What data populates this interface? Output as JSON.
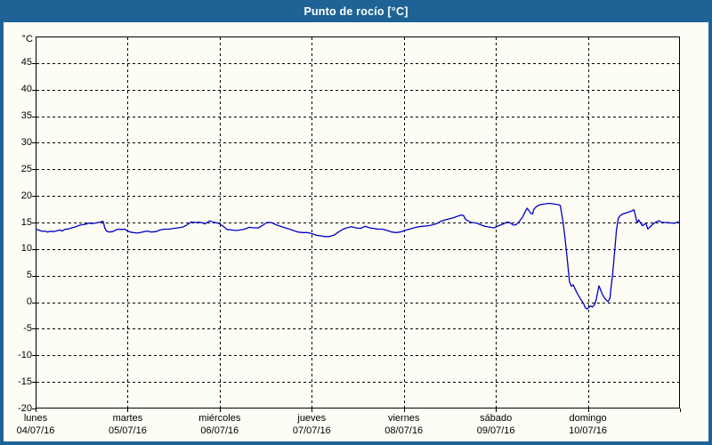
{
  "header": {
    "title": "Punto de rocío [°C]"
  },
  "colors": {
    "frame": "#1F6396",
    "background": "#FDFDF5",
    "line": "#0000C8",
    "grid": "#000000",
    "text": "#000000"
  },
  "chart_data": {
    "type": "line",
    "title": "Punto de rocío [°C]",
    "xlabel": "",
    "ylabel": "°C",
    "ylim": [
      -20,
      50
    ],
    "xlim_days": [
      0,
      7
    ],
    "grid": true,
    "legend": "none",
    "y_ticks": [
      45,
      40,
      35,
      30,
      25,
      20,
      15,
      10,
      5,
      0,
      -5,
      -10,
      -15,
      -20
    ],
    "x_days": [
      {
        "name": "lunes",
        "date": "04/07/16"
      },
      {
        "name": "martes",
        "date": "05/07/16"
      },
      {
        "name": "miércoles",
        "date": "06/07/16"
      },
      {
        "name": "jueves",
        "date": "07/07/16"
      },
      {
        "name": "viernes",
        "date": "08/07/16"
      },
      {
        "name": "sábado",
        "date": "09/07/16"
      },
      {
        "name": "domingo",
        "date": "10/07/16"
      }
    ],
    "series": [
      {
        "name": "Punto de rocío",
        "color": "#0000C8",
        "points": [
          [
            0,
            13.75
          ],
          [
            0.03,
            13.6
          ],
          [
            0.07,
            13.35
          ],
          [
            0.1,
            13.4
          ],
          [
            0.13,
            13.2
          ],
          [
            0.16,
            13.35
          ],
          [
            0.19,
            13.3
          ],
          [
            0.22,
            13.4
          ],
          [
            0.26,
            13.6
          ],
          [
            0.29,
            13.4
          ],
          [
            0.32,
            13.75
          ],
          [
            0.36,
            13.8
          ],
          [
            0.39,
            14
          ],
          [
            0.42,
            14.1
          ],
          [
            0.45,
            14.3
          ],
          [
            0.48,
            14.5
          ],
          [
            0.51,
            14.6
          ],
          [
            0.55,
            14.7
          ],
          [
            0.58,
            14.9
          ],
          [
            0.61,
            14.8
          ],
          [
            0.65,
            14.9
          ],
          [
            0.68,
            15
          ],
          [
            0.71,
            15.1
          ],
          [
            0.73,
            15.25
          ],
          [
            0.74,
            14.9
          ],
          [
            0.75,
            14
          ],
          [
            0.77,
            13.4
          ],
          [
            0.8,
            13.2
          ],
          [
            0.84,
            13.3
          ],
          [
            0.87,
            13.6
          ],
          [
            0.9,
            13.75
          ],
          [
            0.94,
            13.7
          ],
          [
            0.97,
            13.75
          ],
          [
            1,
            13.4
          ],
          [
            1.03,
            13.2
          ],
          [
            1.06,
            13.1
          ],
          [
            1.11,
            13
          ],
          [
            1.16,
            13.2
          ],
          [
            1.21,
            13.4
          ],
          [
            1.26,
            13.2
          ],
          [
            1.31,
            13.3
          ],
          [
            1.35,
            13.6
          ],
          [
            1.4,
            13.75
          ],
          [
            1.45,
            13.75
          ],
          [
            1.5,
            13.9
          ],
          [
            1.55,
            14
          ],
          [
            1.6,
            14.15
          ],
          [
            1.64,
            14.5
          ],
          [
            1.69,
            15.1
          ],
          [
            1.74,
            15
          ],
          [
            1.79,
            15.05
          ],
          [
            1.84,
            14.75
          ],
          [
            1.89,
            15.3
          ],
          [
            1.93,
            15.05
          ],
          [
            1.98,
            14.9
          ],
          [
            2.03,
            14.4
          ],
          [
            2.08,
            13.7
          ],
          [
            2.13,
            13.6
          ],
          [
            2.18,
            13.5
          ],
          [
            2.22,
            13.6
          ],
          [
            2.27,
            13.75
          ],
          [
            2.32,
            14.1
          ],
          [
            2.37,
            14
          ],
          [
            2.42,
            14
          ],
          [
            2.47,
            14.5
          ],
          [
            2.51,
            15
          ],
          [
            2.56,
            15
          ],
          [
            2.61,
            14.6
          ],
          [
            2.66,
            14.3
          ],
          [
            2.71,
            14
          ],
          [
            2.76,
            13.75
          ],
          [
            2.8,
            13.5
          ],
          [
            2.85,
            13.2
          ],
          [
            2.9,
            13.1
          ],
          [
            2.95,
            13.1
          ],
          [
            3,
            12.9
          ],
          [
            3.05,
            12.6
          ],
          [
            3.09,
            12.5
          ],
          [
            3.14,
            12.35
          ],
          [
            3.19,
            12.35
          ],
          [
            3.24,
            12.6
          ],
          [
            3.29,
            13.2
          ],
          [
            3.34,
            13.75
          ],
          [
            3.38,
            14
          ],
          [
            3.43,
            14.2
          ],
          [
            3.48,
            14
          ],
          [
            3.53,
            13.9
          ],
          [
            3.58,
            14.3
          ],
          [
            3.63,
            14
          ],
          [
            3.67,
            13.9
          ],
          [
            3.72,
            13.75
          ],
          [
            3.77,
            13.75
          ],
          [
            3.82,
            13.5
          ],
          [
            3.87,
            13.2
          ],
          [
            3.92,
            13.1
          ],
          [
            3.96,
            13.2
          ],
          [
            4.01,
            13.5
          ],
          [
            4.06,
            13.75
          ],
          [
            4.11,
            14
          ],
          [
            4.16,
            14.2
          ],
          [
            4.21,
            14.3
          ],
          [
            4.25,
            14.35
          ],
          [
            4.3,
            14.5
          ],
          [
            4.35,
            14.75
          ],
          [
            4.4,
            15.2
          ],
          [
            4.45,
            15.5
          ],
          [
            4.5,
            15.7
          ],
          [
            4.54,
            15.9
          ],
          [
            4.59,
            16.2
          ],
          [
            4.62,
            16.4
          ],
          [
            4.65,
            16.3
          ],
          [
            4.67,
            15.6
          ],
          [
            4.71,
            15.2
          ],
          [
            4.74,
            15
          ],
          [
            4.79,
            14.9
          ],
          [
            4.83,
            14.6
          ],
          [
            4.88,
            14.3
          ],
          [
            4.93,
            14.15
          ],
          [
            4.98,
            14
          ],
          [
            5.03,
            14.4
          ],
          [
            5.08,
            14.7
          ],
          [
            5.12,
            15.1
          ],
          [
            5.15,
            15
          ],
          [
            5.19,
            14.5
          ],
          [
            5.22,
            14.6
          ],
          [
            5.25,
            15.1
          ],
          [
            5.29,
            16
          ],
          [
            5.32,
            17.1
          ],
          [
            5.34,
            17.7
          ],
          [
            5.36,
            17.2
          ],
          [
            5.38,
            16.7
          ],
          [
            5.4,
            16.6
          ],
          [
            5.41,
            17.4
          ],
          [
            5.44,
            18
          ],
          [
            5.48,
            18.35
          ],
          [
            5.53,
            18.5
          ],
          [
            5.58,
            18.6
          ],
          [
            5.63,
            18.5
          ],
          [
            5.68,
            18.35
          ],
          [
            5.7,
            18.2
          ],
          [
            5.71,
            17.2
          ],
          [
            5.73,
            15.1
          ],
          [
            5.75,
            12.3
          ],
          [
            5.77,
            9
          ],
          [
            5.79,
            5.5
          ],
          [
            5.8,
            3.8
          ],
          [
            5.82,
            3
          ],
          [
            5.84,
            3.3
          ],
          [
            5.86,
            2.5
          ],
          [
            5.88,
            1.8
          ],
          [
            5.9,
            1.2
          ],
          [
            5.92,
            0.6
          ],
          [
            5.94,
            0.1
          ],
          [
            5.96,
            -0.5
          ],
          [
            5.97,
            -1
          ],
          [
            5.99,
            -1.3
          ],
          [
            6.01,
            -1
          ],
          [
            6.03,
            -0.7
          ],
          [
            6.05,
            -0.9
          ],
          [
            6.07,
            -0.5
          ],
          [
            6.09,
            0.5
          ],
          [
            6.11,
            2.2
          ],
          [
            6.12,
            3.1
          ],
          [
            6.14,
            2.2
          ],
          [
            6.16,
            1.4
          ],
          [
            6.18,
            0.8
          ],
          [
            6.2,
            0.4
          ],
          [
            6.22,
            0.1
          ],
          [
            6.24,
            0.8
          ],
          [
            6.25,
            2.5
          ],
          [
            6.27,
            5.5
          ],
          [
            6.29,
            9.5
          ],
          [
            6.31,
            13.5
          ],
          [
            6.33,
            15.8
          ],
          [
            6.35,
            16.3
          ],
          [
            6.38,
            16.6
          ],
          [
            6.43,
            16.9
          ],
          [
            6.48,
            17.2
          ],
          [
            6.5,
            17.4
          ],
          [
            6.52,
            16
          ],
          [
            6.53,
            15.2
          ],
          [
            6.54,
            15
          ],
          [
            6.55,
            15.5
          ],
          [
            6.57,
            15
          ],
          [
            6.59,
            14.4
          ],
          [
            6.61,
            14.6
          ],
          [
            6.63,
            14.9
          ],
          [
            6.65,
            13.8
          ],
          [
            6.67,
            14.1
          ],
          [
            6.7,
            14.6
          ],
          [
            6.74,
            15.1
          ],
          [
            6.77,
            15.35
          ],
          [
            6.79,
            15.1
          ],
          [
            6.82,
            15
          ],
          [
            6.86,
            15
          ],
          [
            6.91,
            14.9
          ],
          [
            6.94,
            14.85
          ],
          [
            6.98,
            15.1
          ],
          [
            7,
            15
          ]
        ]
      }
    ]
  }
}
